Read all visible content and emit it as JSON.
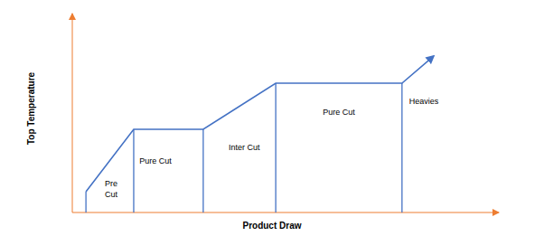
{
  "chart_data": {
    "type": "line",
    "x_label": "Product Draw",
    "y_label": "Top Temperature",
    "x": [
      3.2,
      14.4,
      30.7,
      47.7,
      77.3,
      84.7
    ],
    "values": [
      10.5,
      41.8,
      41.8,
      65,
      65,
      78.6
    ],
    "color": "#4472c4",
    "xlim": [
      0,
      100
    ],
    "ylim": [
      0,
      100
    ],
    "tick_labels": false,
    "grid": false,
    "annotations": [
      {
        "text": "Pre\nCut",
        "x": 9.1,
        "y": 11.8
      },
      {
        "text": "Pure Cut",
        "x": 19.5,
        "y": 25.9
      },
      {
        "text": "Inter Cut",
        "x": 40.3,
        "y": 32.7
      },
      {
        "text": "Pure Cut",
        "x": 62.5,
        "y": 50.5
      },
      {
        "text": "Heavies",
        "x": 82.4,
        "y": 55.9
      }
    ]
  }
}
